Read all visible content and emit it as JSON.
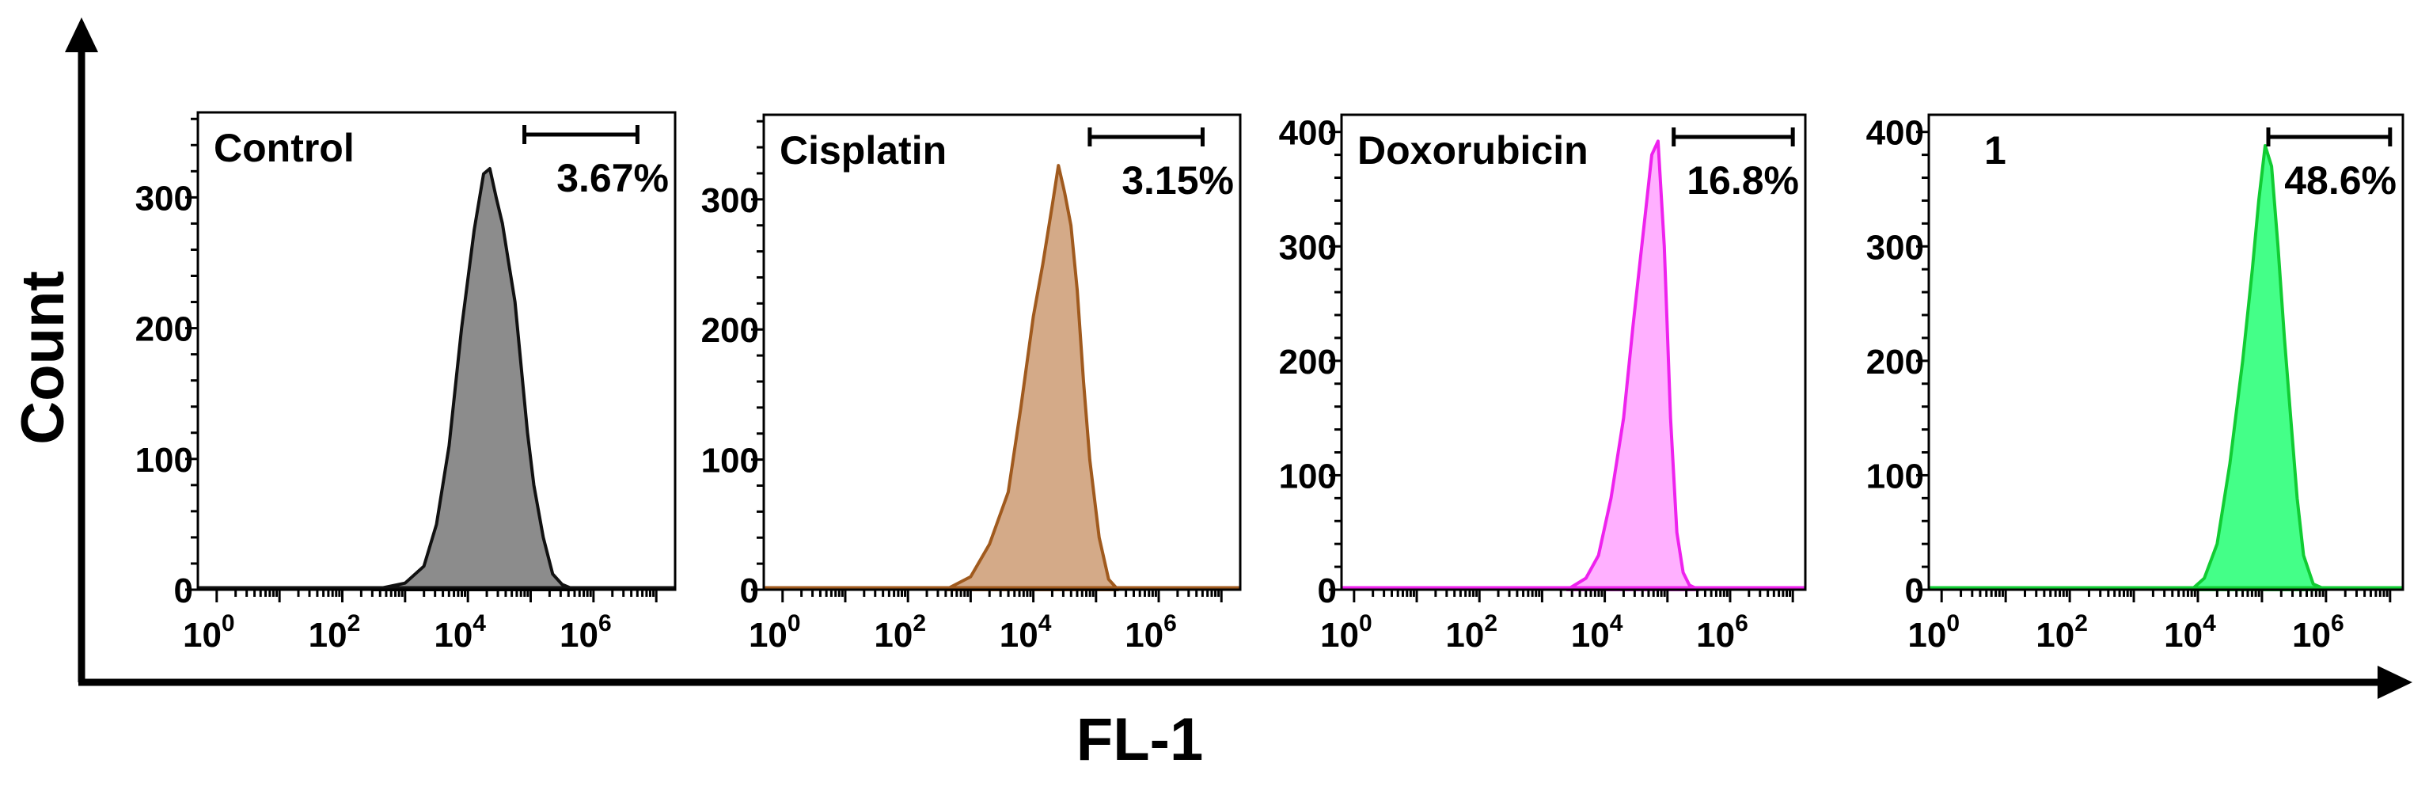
{
  "x_axis_label": "FL-1",
  "y_axis_label": "Count",
  "chart_data": [
    {
      "type": "histogram",
      "title": "Control",
      "gate_percent": "3.67%",
      "gate_range_log10": [
        4.9,
        6.7
      ],
      "xscale": "log",
      "x_ticks": [
        {
          "base": "10",
          "exp": "0"
        },
        {
          "base": "10",
          "exp": "2"
        },
        {
          "base": "10",
          "exp": "4"
        },
        {
          "base": "10",
          "exp": "6"
        }
      ],
      "xlim_log10": [
        -0.3,
        7.3
      ],
      "y_ticks": [
        "0",
        "100",
        "200",
        "300"
      ],
      "ylim": [
        0,
        365
      ],
      "color": "#8c8c8c",
      "stroke": "#111111",
      "curve": {
        "x_log10": [
          2.5,
          3.0,
          3.3,
          3.5,
          3.7,
          3.9,
          4.1,
          4.25,
          4.35,
          4.45,
          4.55,
          4.65,
          4.75,
          4.85,
          4.95,
          5.05,
          5.2,
          5.35,
          5.5,
          5.7
        ],
        "count": [
          0,
          5,
          18,
          50,
          110,
          200,
          275,
          318,
          322,
          300,
          280,
          250,
          220,
          170,
          120,
          80,
          40,
          12,
          4,
          0
        ]
      }
    },
    {
      "type": "histogram",
      "title": "Cisplatin",
      "gate_percent": "3.15%",
      "gate_range_log10": [
        4.9,
        6.7
      ],
      "xscale": "log",
      "x_ticks": [
        {
          "base": "10",
          "exp": "0"
        },
        {
          "base": "10",
          "exp": "2"
        },
        {
          "base": "10",
          "exp": "4"
        },
        {
          "base": "10",
          "exp": "6"
        }
      ],
      "xlim_log10": [
        -0.3,
        7.3
      ],
      "y_ticks": [
        "0",
        "100",
        "200",
        "300"
      ],
      "ylim": [
        0,
        365
      ],
      "color": "#d4aa88",
      "stroke": "#a05a1e",
      "curve": {
        "x_log10": [
          2.6,
          3.0,
          3.3,
          3.6,
          3.8,
          4.0,
          4.15,
          4.3,
          4.4,
          4.5,
          4.6,
          4.7,
          4.8,
          4.9,
          5.05,
          5.2,
          5.35
        ],
        "count": [
          0,
          10,
          35,
          75,
          140,
          210,
          250,
          295,
          326,
          305,
          280,
          230,
          160,
          100,
          40,
          8,
          0
        ]
      }
    },
    {
      "type": "histogram",
      "title": "Doxorubicin",
      "gate_percent": "16.8%",
      "gate_range_log10": [
        5.1,
        7.0
      ],
      "xscale": "log",
      "x_ticks": [
        {
          "base": "10",
          "exp": "0"
        },
        {
          "base": "10",
          "exp": "2"
        },
        {
          "base": "10",
          "exp": "4"
        },
        {
          "base": "10",
          "exp": "6"
        }
      ],
      "xlim_log10": [
        -0.2,
        7.2
      ],
      "y_ticks": [
        "0",
        "100",
        "200",
        "300",
        "400"
      ],
      "ylim": [
        0,
        415
      ],
      "color": "#ffb0ff",
      "stroke": "#ee22ee",
      "curve": {
        "x_log10": [
          3.4,
          3.7,
          3.9,
          4.1,
          4.3,
          4.45,
          4.55,
          4.65,
          4.75,
          4.85,
          4.95,
          5.05,
          5.15,
          5.25,
          5.35,
          5.5
        ],
        "count": [
          0,
          10,
          30,
          80,
          150,
          230,
          280,
          330,
          380,
          392,
          300,
          150,
          50,
          15,
          4,
          0
        ]
      }
    },
    {
      "type": "histogram",
      "title": "1",
      "gate_percent": "48.6%",
      "gate_range_log10": [
        5.1,
        7.0
      ],
      "xscale": "log",
      "x_ticks": [
        {
          "base": "10",
          "exp": "0"
        },
        {
          "base": "10",
          "exp": "2"
        },
        {
          "base": "10",
          "exp": "4"
        },
        {
          "base": "10",
          "exp": "6"
        }
      ],
      "xlim_log10": [
        -0.2,
        7.2
      ],
      "y_ticks": [
        "0",
        "100",
        "200",
        "300",
        "400"
      ],
      "ylim": [
        0,
        415
      ],
      "color": "#44ff88",
      "stroke": "#11cc33",
      "curve": {
        "x_log10": [
          3.9,
          4.1,
          4.3,
          4.5,
          4.7,
          4.85,
          4.95,
          5.05,
          5.15,
          5.25,
          5.35,
          5.45,
          5.55,
          5.65,
          5.8,
          6.0
        ],
        "count": [
          0,
          10,
          40,
          110,
          200,
          280,
          340,
          388,
          370,
          300,
          220,
          150,
          80,
          30,
          5,
          0
        ]
      }
    }
  ]
}
